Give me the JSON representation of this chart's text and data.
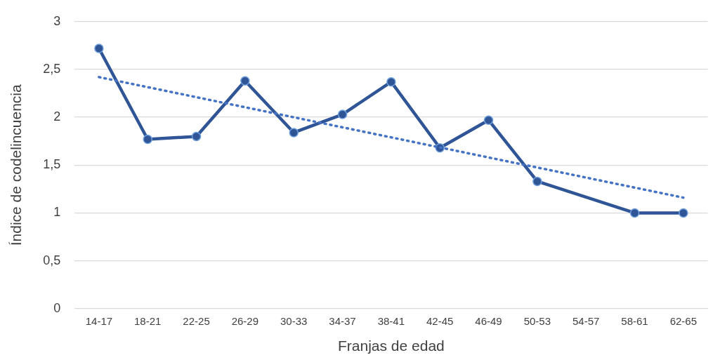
{
  "chart_data": {
    "type": "line",
    "xlabel": "Franjas de edad",
    "ylabel": "Índice de codelincuencia",
    "categories": [
      "14-17",
      "18-21",
      "22-25",
      "26-29",
      "30-33",
      "34-37",
      "38-41",
      "42-45",
      "46-49",
      "50-53",
      "54-57",
      "58-61",
      "62-65"
    ],
    "series": [
      {
        "color": "#2f5597",
        "marker": "circle",
        "line_style": "solid",
        "values": [
          2.72,
          1.77,
          1.8,
          2.38,
          1.84,
          2.03,
          2.37,
          1.68,
          1.97,
          1.33,
          null,
          1.0,
          1.0
        ]
      },
      {
        "type": "line",
        "color": "#4472c4",
        "marker": "none",
        "line_style": "dotted",
        "values": [
          2.42,
          null,
          null,
          null,
          null,
          null,
          null,
          null,
          null,
          null,
          null,
          null,
          1.16
        ]
      }
    ],
    "ylim": [
      0,
      3
    ],
    "yticks": [
      0,
      {
        "value": 0.5,
        "label": "0,5"
      },
      1,
      {
        "value": 1.5,
        "label": "1,5"
      },
      2,
      {
        "value": 2.5,
        "label": "2,5"
      },
      3
    ],
    "grid": "y",
    "legend": false
  }
}
